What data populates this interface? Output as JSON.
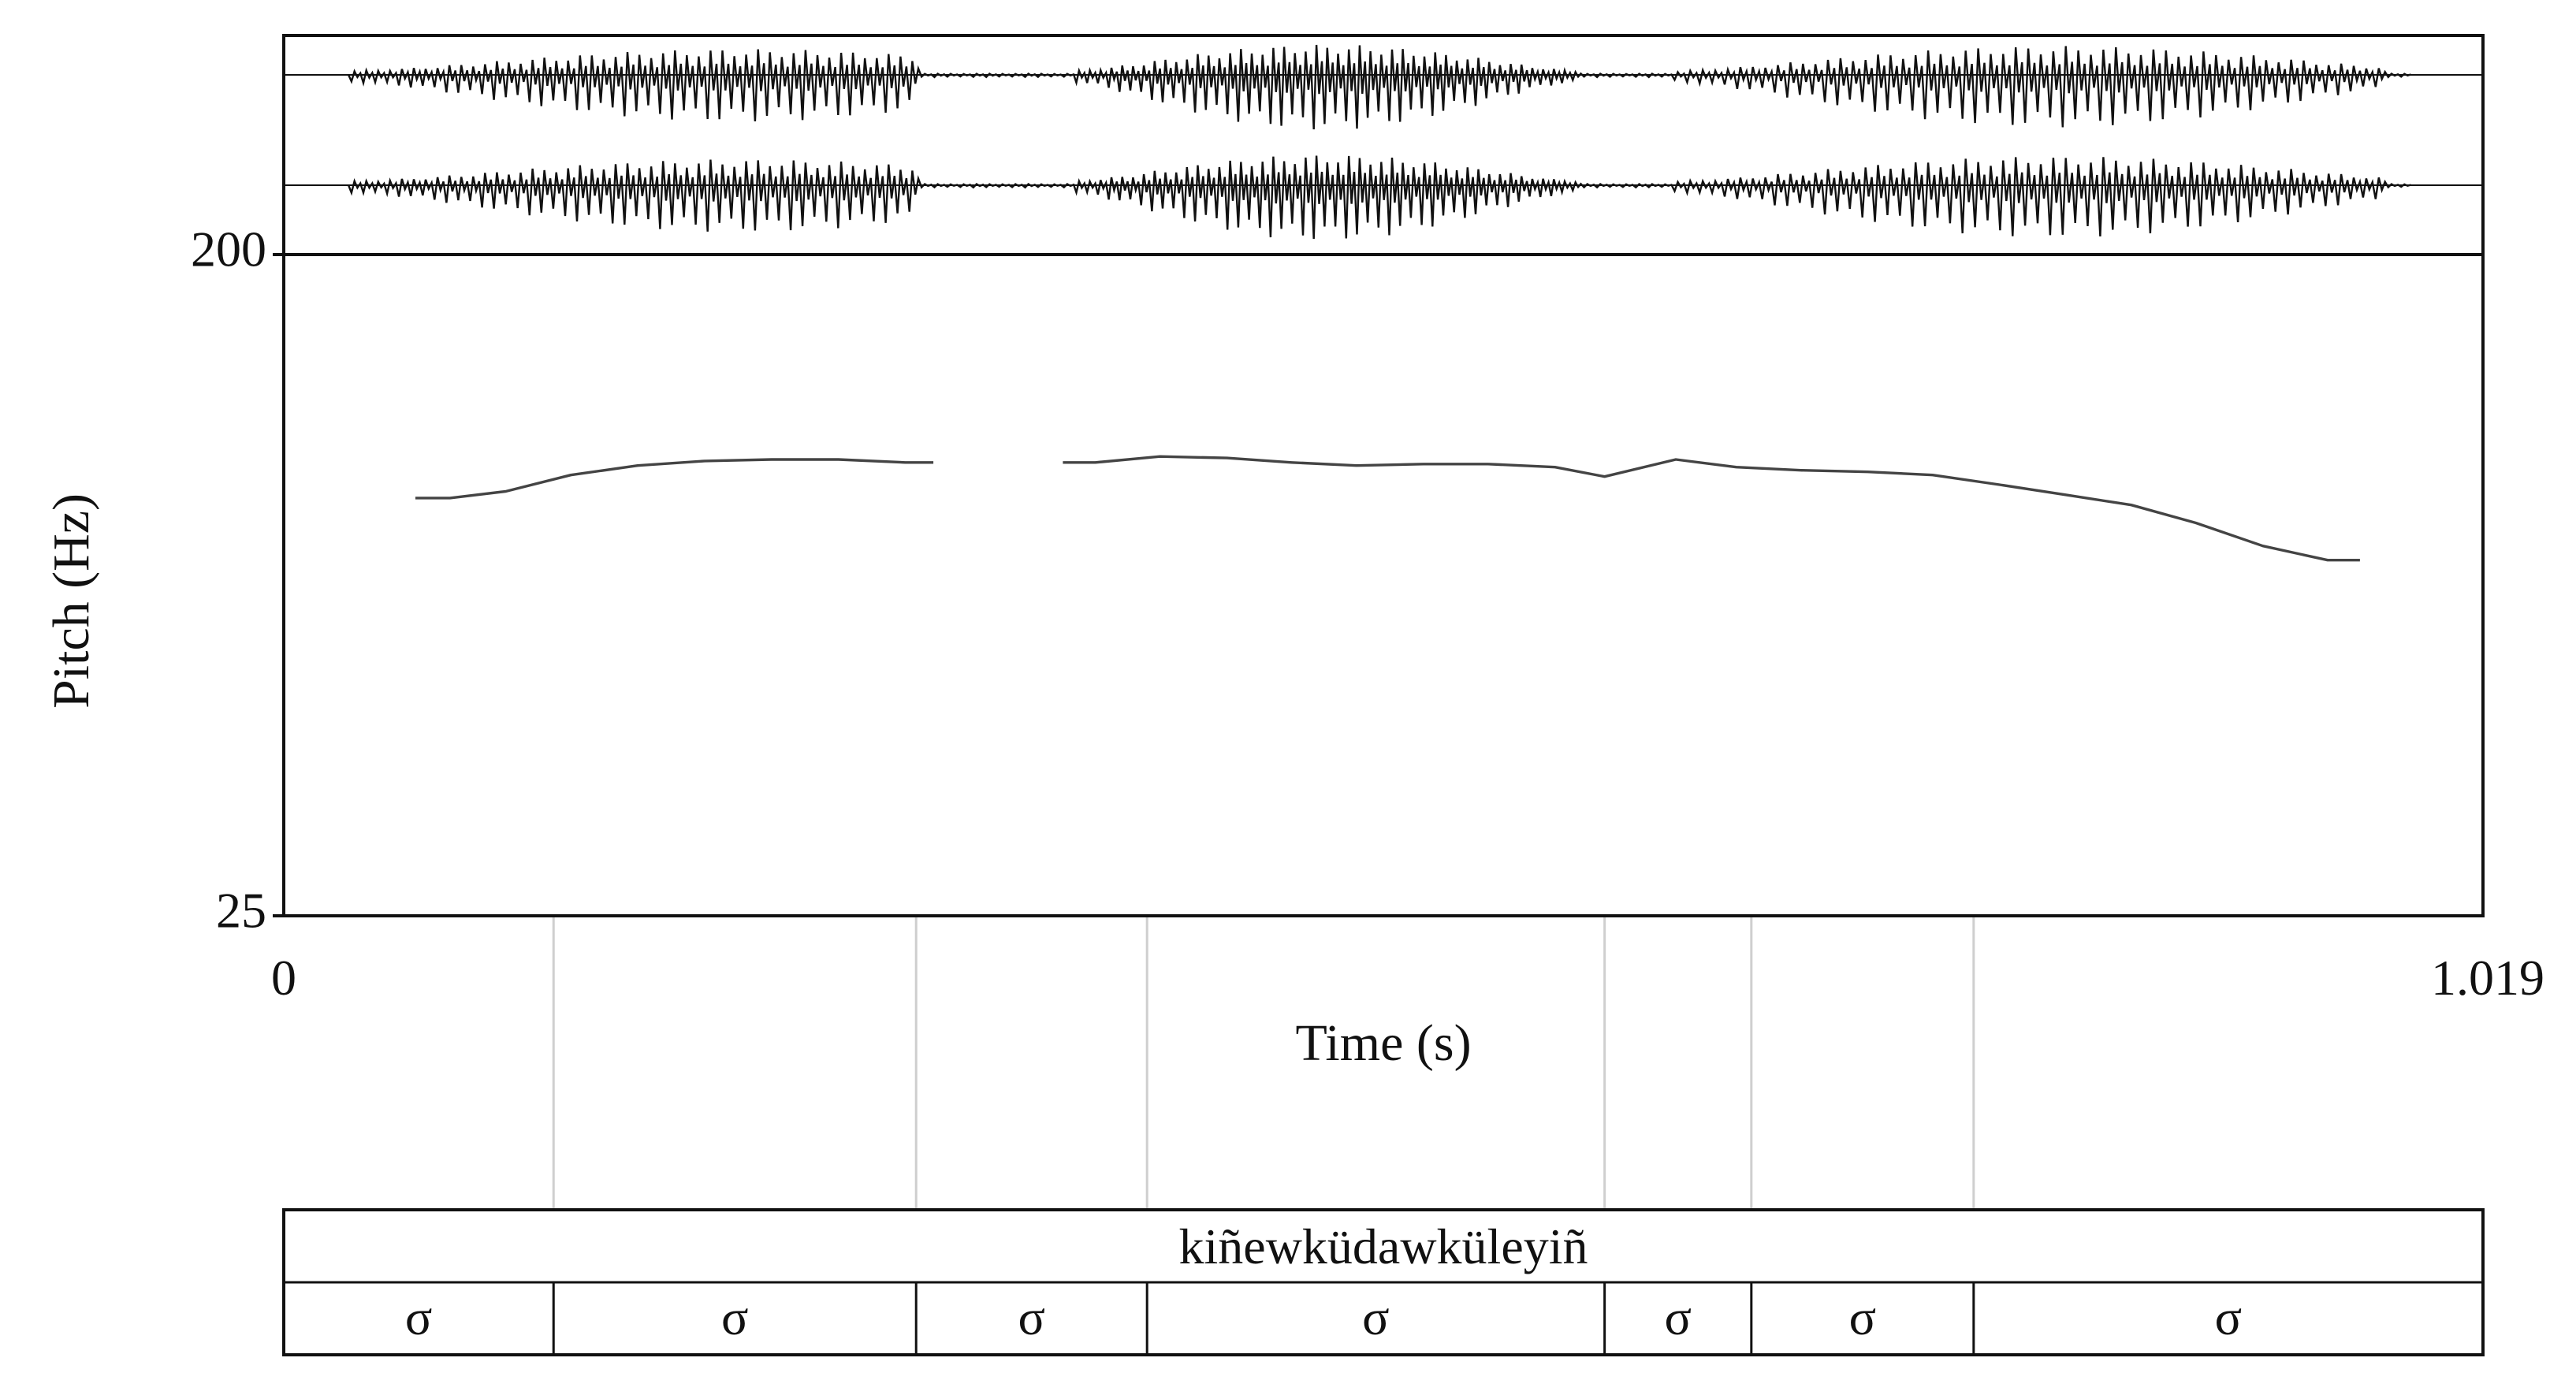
{
  "chart_data": {
    "type": "line",
    "title": "",
    "xlabel": "Time (s)",
    "ylabel": "Pitch (Hz)",
    "xlim": [
      0,
      1.019
    ],
    "ylim": [
      25,
      200
    ],
    "scale": "log",
    "grid": false,
    "x_tick_labels": [
      "0",
      "1.019"
    ],
    "y_tick_labels": [
      "200",
      "25"
    ],
    "waveform": {
      "channels": 2,
      "bursts": [
        {
          "start": 0.03,
          "end": 0.29,
          "center": 0.21,
          "peak": 0.85,
          "floor": 0.14,
          "period": 0.0055
        },
        {
          "start": 0.36,
          "end": 0.6,
          "center": 0.48,
          "peak": 1.0,
          "floor": 0.12,
          "period": 0.005
        },
        {
          "start": 0.64,
          "end": 0.97,
          "center": 0.82,
          "peak": 0.95,
          "floor": 0.12,
          "period": 0.0058
        }
      ]
    },
    "series": [
      {
        "segments": [
          [
            {
              "x": 0.061,
              "y": 93
            },
            {
              "x": 0.077,
              "y": 93
            },
            {
              "x": 0.103,
              "y": 95
            },
            {
              "x": 0.133,
              "y": 100
            },
            {
              "x": 0.164,
              "y": 103
            },
            {
              "x": 0.195,
              "y": 104.5
            },
            {
              "x": 0.226,
              "y": 105
            },
            {
              "x": 0.257,
              "y": 105
            },
            {
              "x": 0.288,
              "y": 104
            },
            {
              "x": 0.301,
              "y": 104
            }
          ],
          [
            {
              "x": 0.361,
              "y": 104
            },
            {
              "x": 0.376,
              "y": 104
            },
            {
              "x": 0.406,
              "y": 106
            },
            {
              "x": 0.437,
              "y": 105.5
            },
            {
              "x": 0.467,
              "y": 104
            },
            {
              "x": 0.497,
              "y": 103
            },
            {
              "x": 0.528,
              "y": 103.5
            },
            {
              "x": 0.558,
              "y": 103.5
            },
            {
              "x": 0.589,
              "y": 102.5
            },
            {
              "x": 0.612,
              "y": 99.5
            },
            {
              "x": 0.645,
              "y": 105
            },
            {
              "x": 0.673,
              "y": 102.5
            },
            {
              "x": 0.703,
              "y": 101.5
            },
            {
              "x": 0.734,
              "y": 101
            },
            {
              "x": 0.764,
              "y": 100
            },
            {
              "x": 0.795,
              "y": 97
            },
            {
              "x": 0.825,
              "y": 94
            },
            {
              "x": 0.856,
              "y": 91
            },
            {
              "x": 0.886,
              "y": 86
            },
            {
              "x": 0.917,
              "y": 80
            },
            {
              "x": 0.947,
              "y": 76.5
            },
            {
              "x": 0.962,
              "y": 76.5
            }
          ]
        ]
      }
    ],
    "text_grid": {
      "tiers": [
        {
          "intervals": [
            {
              "start": 0,
              "end": 1.019,
              "label": "kiñewküdawküleyiñ"
            }
          ]
        },
        {
          "intervals": [
            {
              "start": 0,
              "end": 0.125,
              "label": "σ"
            },
            {
              "start": 0.125,
              "end": 0.293,
              "label": "σ"
            },
            {
              "start": 0.293,
              "end": 0.4,
              "label": "σ"
            },
            {
              "start": 0.4,
              "end": 0.612,
              "label": "σ"
            },
            {
              "start": 0.612,
              "end": 0.68,
              "label": "σ"
            },
            {
              "start": 0.68,
              "end": 0.783,
              "label": "σ"
            },
            {
              "start": 0.783,
              "end": 1.019,
              "label": "σ"
            }
          ]
        }
      ]
    },
    "colors": {
      "line": "#444444",
      "frame": "#111111",
      "waveform": "#111111",
      "guide": "#cfcfcf"
    }
  }
}
